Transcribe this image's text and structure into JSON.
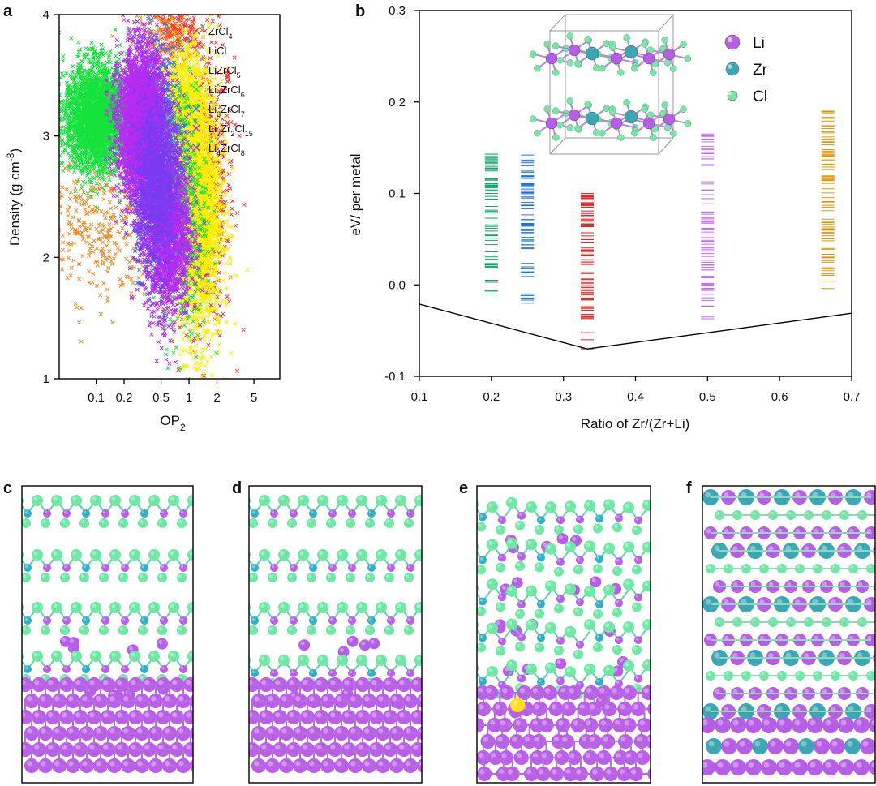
{
  "panels": {
    "a": {
      "letter": "a"
    },
    "b": {
      "letter": "b"
    },
    "c": {
      "letter": "c"
    },
    "d": {
      "letter": "d"
    },
    "e": {
      "letter": "e"
    },
    "f": {
      "letter": "f"
    }
  },
  "colors": {
    "li": "#b65ee6",
    "zr": "#3aa7b4",
    "cl": "#7fe3a2",
    "axis": "#000000"
  },
  "chart_data": [
    {
      "id": "a",
      "type": "scatter",
      "title": "",
      "xlabel": {
        "base": "OP",
        "sub": "2"
      },
      "ylabel": {
        "main": "Density (g cm",
        "sup": "-3",
        "close": ")"
      },
      "xscale": "log",
      "xlim": [
        0.04,
        9.5
      ],
      "ylim": [
        1,
        4
      ],
      "xticks": [
        "0.1",
        "0.2",
        "0.5",
        "1",
        "2",
        "5"
      ],
      "xtick_values": [
        0.1,
        0.2,
        0.5,
        1,
        2,
        5
      ],
      "yticks": [
        "1",
        "2",
        "3",
        "4"
      ],
      "ytick_values": [
        1,
        2,
        3,
        4
      ],
      "marker": "x",
      "legend_position": "top-right",
      "series": [
        {
          "name": [
            [
              "ZrCl"
            ],
            [
              "4",
              "sub"
            ]
          ],
          "color": "#ff3333",
          "clusters": [
            {
              "op": 1.6,
              "density": 2.6,
              "op_spread": 0.14,
              "density_spread": 0.6,
              "n": 500
            },
            {
              "op": 0.7,
              "density": 3.85,
              "op_spread": 0.13,
              "density_spread": 0.12,
              "n": 200
            }
          ]
        },
        {
          "name": [
            [
              "LiCl"
            ]
          ],
          "color": "#f28a28",
          "clusters": [
            {
              "op": 0.1,
              "density": 2.25,
              "op_spread": 0.35,
              "density_spread": 0.3,
              "n": 350
            },
            {
              "op": 0.55,
              "density": 3.8,
              "op_spread": 0.15,
              "density_spread": 0.15,
              "n": 120
            }
          ]
        },
        {
          "name": [
            [
              "LiZrCl"
            ],
            [
              "5",
              "sub"
            ]
          ],
          "color": "#ffee00",
          "clusters": [
            {
              "op": 1.3,
              "density": 2.4,
              "op_spread": 0.12,
              "density_spread": 0.55,
              "n": 2200
            },
            {
              "op": 0.85,
              "density": 3.2,
              "op_spread": 0.1,
              "density_spread": 0.25,
              "n": 900
            }
          ]
        },
        {
          "name": [
            [
              "Li"
            ],
            [
              "2",
              "sub"
            ],
            [
              "ZrCl"
            ],
            [
              "6",
              "sub"
            ]
          ],
          "color": "#16e23c",
          "clusters": [
            {
              "op": 0.1,
              "density": 3.15,
              "op_spread": 0.17,
              "density_spread": 0.22,
              "n": 2600
            },
            {
              "op": 0.9,
              "density": 2.4,
              "op_spread": 0.12,
              "density_spread": 0.55,
              "n": 450
            }
          ]
        },
        {
          "name": [
            [
              "Li"
            ],
            [
              "3",
              "sub"
            ],
            [
              "ZrCl"
            ],
            [
              "7",
              "sub"
            ]
          ],
          "color": "#2f7cf0",
          "clusters": [
            {
              "op": 0.45,
              "density": 2.85,
              "op_spread": 0.14,
              "density_spread": 0.45,
              "n": 1000
            }
          ]
        },
        {
          "name": [
            [
              "Li"
            ],
            [
              "7",
              "sub"
            ],
            [
              "Zr"
            ],
            [
              "2",
              "sub"
            ],
            [
              "Cl"
            ],
            [
              "15",
              "sub"
            ]
          ],
          "color": "#b52cf2",
          "clusters": [
            {
              "op": 0.3,
              "density": 3.1,
              "op_spread": 0.12,
              "density_spread": 0.3,
              "n": 3200
            },
            {
              "op": 0.6,
              "density": 2.2,
              "op_spread": 0.12,
              "density_spread": 0.35,
              "n": 1600
            }
          ]
        },
        {
          "name": [
            [
              "Li"
            ],
            [
              "4",
              "sub"
            ],
            [
              "ZrCl"
            ],
            [
              "8",
              "sub"
            ]
          ],
          "color": "#7a3cf0",
          "clusters": [
            {
              "op": 0.45,
              "density": 2.6,
              "op_spread": 0.12,
              "density_spread": 0.35,
              "n": 1200
            }
          ]
        }
      ]
    },
    {
      "id": "b",
      "type": "scatter",
      "title": "",
      "xlabel": "Ratio of Zr/(Zr+Li)",
      "ylabel": "eV/ per metal",
      "xlim": [
        0.1,
        0.7
      ],
      "ylim": [
        -0.1,
        0.3
      ],
      "xticks": [
        "0.1",
        "0.2",
        "0.3",
        "0.4",
        "0.5",
        "0.6",
        "0.7"
      ],
      "xtick_values": [
        0.1,
        0.2,
        0.3,
        0.4,
        0.5,
        0.6,
        0.7
      ],
      "yticks": [
        "-0.1",
        "0.0",
        "0.1",
        "0.2",
        "0.3"
      ],
      "ytick_values": [
        -0.1,
        0.0,
        0.1,
        0.2,
        0.3
      ],
      "marker": "horizontal-dash",
      "convex_hull": {
        "x": [
          0.1,
          0.333,
          0.7
        ],
        "y": [
          -0.021,
          -0.07,
          -0.031
        ]
      },
      "series": [
        {
          "name": "",
          "color": "#12a36a",
          "x": 0.2,
          "y_min": -0.01,
          "y_max": 0.143,
          "n": 70
        },
        {
          "name": "",
          "color": "#1f6fe0",
          "x": 0.25,
          "y_min": -0.02,
          "y_max": 0.142,
          "n": 70
        },
        {
          "name": "",
          "color": "#ee2222",
          "x": 0.333,
          "y_min": -0.07,
          "y_max": 0.1,
          "n": 80
        },
        {
          "name": "",
          "color": "#c06cf0",
          "x": 0.5,
          "y_min": -0.037,
          "y_max": 0.165,
          "n": 80
        },
        {
          "name": "",
          "color": "#e29400",
          "x": 0.667,
          "y_min": -0.004,
          "y_max": 0.19,
          "n": 80
        }
      ],
      "legend": [
        {
          "label": "Li",
          "color": "#b65ee6"
        },
        {
          "label": "Zr",
          "color": "#3aa7b4"
        },
        {
          "label": "Cl",
          "color": "#7fe3a2"
        }
      ],
      "legend_position": "top-right"
    }
  ]
}
